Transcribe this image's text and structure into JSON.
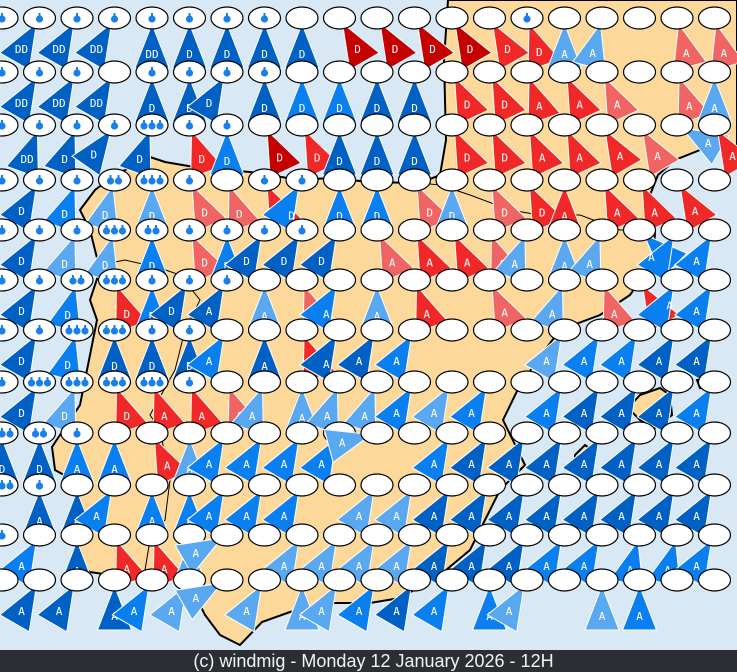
{
  "footer": {
    "text": "(c) windmig - Monday 12 January 2026 - 12H"
  },
  "colors": {
    "sea": "#d8e8f4",
    "land": "#fcd99a",
    "coast": "#000000",
    "footer_bg": "#2b2f33",
    "drop": "#1a7fe8"
  },
  "palette": {
    "dk": "#0060c4",
    "md": "#0a80f0",
    "lt": "#5aa8f0",
    "pk": "#f06464",
    "rd": "#f02828",
    "dr": "#c40000"
  },
  "legend_note": "",
  "marker_fields": [
    "label",
    "color",
    "drops",
    "direction_deg"
  ],
  "marker_rows": [
    [
      [
        "D",
        "dk",
        1,
        40
      ],
      [
        "DD",
        "dk",
        1,
        30
      ],
      [
        "DD",
        "dk",
        1,
        30
      ],
      [
        "DD",
        "dk",
        1,
        30
      ],
      [
        "DD",
        "dk",
        1,
        0
      ],
      [
        "D",
        "dk",
        1,
        0
      ],
      [
        "D",
        "dk",
        1,
        0
      ],
      [
        "D",
        "dk",
        1,
        0
      ],
      [
        "D",
        "dk",
        0,
        0
      ],
      [
        "D",
        "dr",
        0,
        -30
      ],
      [
        "D",
        "dr",
        0,
        -30
      ],
      [
        "D",
        "dr",
        0,
        -30
      ],
      [
        "D",
        "dr",
        0,
        -30
      ],
      [
        "D",
        "rd",
        0,
        -30
      ],
      [
        "D",
        "rd",
        1,
        -20
      ],
      [
        "A",
        "lt",
        0,
        0
      ],
      [
        "A",
        "lt",
        0,
        15
      ],
      [
        "",
        "",
        0,
        0
      ],
      [
        "A",
        "pk",
        0,
        -15
      ],
      [
        "A",
        "pk",
        0,
        -15
      ]
    ],
    [
      [
        "D",
        "dk",
        1,
        35
      ],
      [
        "DD",
        "dk",
        1,
        30
      ],
      [
        "DD",
        "dk",
        1,
        30
      ],
      [
        "DD",
        "dk",
        0,
        30
      ],
      [
        "D",
        "dk",
        1,
        0
      ],
      [
        "D",
        "dk",
        1,
        0
      ],
      [
        "D",
        "dk",
        1,
        30
      ],
      [
        "D",
        "dk",
        1,
        0
      ],
      [
        "D",
        "md",
        0,
        0
      ],
      [
        "D",
        "md",
        0,
        0
      ],
      [
        "D",
        "dk",
        0,
        0
      ],
      [
        "D",
        "dk",
        0,
        0
      ],
      [
        "D",
        "rd",
        0,
        -25
      ],
      [
        "D",
        "rd",
        0,
        -25
      ],
      [
        "A",
        "rd",
        0,
        -20
      ],
      [
        "A",
        "rd",
        0,
        -25
      ],
      [
        "A",
        "pk",
        0,
        -25
      ],
      [
        "",
        "",
        0,
        0
      ],
      [
        "A",
        "pk",
        0,
        -20
      ],
      [
        "A",
        "lt",
        0,
        0
      ]
    ],
    [
      [
        "D",
        "dk",
        1,
        30
      ],
      [
        "DD",
        "dk",
        1,
        20
      ],
      [
        "D",
        "dk",
        1,
        20
      ],
      [
        "D",
        "dk",
        1,
        35
      ],
      [
        "D",
        "dk",
        3,
        20
      ],
      [
        "D",
        "rd",
        1,
        -20
      ],
      [
        "D",
        "md",
        1,
        0
      ],
      [
        "D",
        "dr",
        0,
        -25
      ],
      [
        "D",
        "rd",
        0,
        -25
      ],
      [
        "D",
        "dk",
        0,
        0
      ],
      [
        "D",
        "dk",
        0,
        0
      ],
      [
        "D",
        "dk",
        0,
        0
      ],
      [
        "D",
        "rd",
        0,
        -25
      ],
      [
        "D",
        "rd",
        0,
        -25
      ],
      [
        "A",
        "rd",
        0,
        -25
      ],
      [
        "A",
        "rd",
        0,
        -25
      ],
      [
        "A",
        "rd",
        0,
        -30
      ],
      [
        "A",
        "pk",
        0,
        -30
      ],
      [
        "A",
        "lt",
        0,
        -60
      ],
      [
        "A",
        "rd",
        0,
        -30
      ]
    ],
    [
      [
        "D",
        "dk",
        1,
        35
      ],
      [
        "D",
        "dk",
        1,
        30
      ],
      [
        "D",
        "md",
        1,
        20
      ],
      [
        "D",
        "lt",
        2,
        15
      ],
      [
        "D",
        "lt",
        3,
        0
      ],
      [
        "D",
        "pk",
        1,
        -25
      ],
      [
        "D",
        "pk",
        0,
        -20
      ],
      [
        "D",
        "rd",
        1,
        -25
      ],
      [
        "D",
        "md",
        1,
        30
      ],
      [
        "D",
        "md",
        0,
        0
      ],
      [
        "D",
        "md",
        0,
        0
      ],
      [
        "D",
        "pk",
        0,
        -25
      ],
      [
        "D",
        "lt",
        0,
        0
      ],
      [
        "D",
        "pk",
        0,
        -25
      ],
      [
        "D",
        "rd",
        0,
        -25
      ],
      [
        "A",
        "rd",
        0,
        0
      ],
      [
        "A",
        "rd",
        0,
        -25
      ],
      [
        "A",
        "rd",
        0,
        -25
      ],
      [
        "A",
        "rd",
        0,
        -30
      ],
      [
        "",
        "",
        0,
        0
      ]
    ],
    [
      [
        "D",
        "dk",
        1,
        30
      ],
      [
        "D",
        "dk",
        1,
        30
      ],
      [
        "D",
        "lt",
        1,
        20
      ],
      [
        "D",
        "lt",
        3,
        15
      ],
      [
        "D",
        "md",
        2,
        0
      ],
      [
        "D",
        "pk",
        1,
        -25
      ],
      [
        "D",
        "md",
        1,
        0
      ],
      [
        "D",
        "dk",
        1,
        30
      ],
      [
        "D",
        "dk",
        1,
        30
      ],
      [
        "D",
        "dk",
        0,
        30
      ],
      [
        "A",
        "pk",
        0,
        -25
      ],
      [
        "A",
        "rd",
        0,
        -25
      ],
      [
        "A",
        "rd",
        0,
        -25
      ],
      [
        "A",
        "pk",
        0,
        -20
      ],
      [
        "A",
        "lt",
        0,
        20
      ],
      [
        "A",
        "lt",
        0,
        0
      ],
      [
        "A",
        "lt",
        0,
        20
      ],
      [
        "A",
        "md",
        0,
        -45
      ],
      [
        "A",
        "md",
        0,
        30
      ],
      [
        "A",
        "md",
        0,
        30
      ]
    ],
    [
      [
        "D",
        "dk",
        1,
        30
      ],
      [
        "D",
        "dk",
        1,
        30
      ],
      [
        "D",
        "md",
        2,
        15
      ],
      [
        "D",
        "rd",
        3,
        -20
      ],
      [
        "D",
        "md",
        1,
        0
      ],
      [
        "D",
        "dk",
        1,
        30
      ],
      [
        "A",
        "dk",
        1,
        30
      ],
      [
        "A",
        "lt",
        0,
        0
      ],
      [
        "A",
        "pk",
        0,
        -20
      ],
      [
        "A",
        "md",
        0,
        30
      ],
      [
        "A",
        "lt",
        0,
        0
      ],
      [
        "A",
        "rd",
        0,
        -20
      ],
      [
        "",
        "",
        0,
        0
      ],
      [
        "A",
        "pk",
        0,
        -25
      ],
      [
        "",
        "",
        0,
        0
      ],
      [
        "A",
        "lt",
        0,
        20
      ],
      [
        "A",
        "pk",
        0,
        -20
      ],
      [
        "A",
        "rd",
        0,
        -30
      ],
      [
        "A",
        "md",
        0,
        30
      ],
      [
        "A",
        "md",
        0,
        30
      ]
    ],
    [
      [
        "D",
        "dk",
        1,
        30
      ],
      [
        "D",
        "dk",
        1,
        30
      ],
      [
        "D",
        "md",
        3,
        15
      ],
      [
        "D",
        "dk",
        3,
        0
      ],
      [
        "D",
        "dk",
        1,
        0
      ],
      [
        "D",
        "dk",
        1,
        0
      ],
      [
        "A",
        "md",
        0,
        30
      ],
      [
        "A",
        "dk",
        0,
        0
      ],
      [
        "A",
        "rd",
        0,
        -20
      ],
      [
        "A",
        "dk",
        0,
        30
      ],
      [
        "A",
        "dk",
        0,
        30
      ],
      [
        "A",
        "md",
        0,
        30
      ],
      [
        "",
        "",
        0,
        0
      ],
      [
        "",
        "",
        0,
        0
      ],
      [
        "",
        "",
        0,
        0
      ],
      [
        "A",
        "lt",
        0,
        30
      ],
      [
        "A",
        "md",
        0,
        30
      ],
      [
        "A",
        "md",
        0,
        30
      ],
      [
        "A",
        "dk",
        0,
        30
      ],
      [
        "A",
        "dk",
        0,
        30
      ]
    ],
    [
      [
        "D",
        "dk",
        1,
        60
      ],
      [
        "D",
        "dk",
        3,
        30
      ],
      [
        "D",
        "lt",
        3,
        20
      ],
      [
        "D",
        "rd",
        3,
        -20
      ],
      [
        "A",
        "rd",
        3,
        -20
      ],
      [
        "A",
        "rd",
        1,
        -20
      ],
      [
        "A",
        "pk",
        0,
        -20
      ],
      [
        "A",
        "lt",
        0,
        20
      ],
      [
        "A",
        "lt",
        0,
        0
      ],
      [
        "A",
        "lt",
        0,
        20
      ],
      [
        "A",
        "lt",
        0,
        20
      ],
      [
        "A",
        "md",
        0,
        30
      ],
      [
        "A",
        "lt",
        0,
        30
      ],
      [
        "A",
        "md",
        0,
        30
      ],
      [
        "",
        "",
        0,
        0
      ],
      [
        "A",
        "md",
        0,
        30
      ],
      [
        "A",
        "dk",
        0,
        30
      ],
      [
        "A",
        "dk",
        0,
        30
      ],
      [
        "A",
        "dk",
        0,
        30
      ],
      [
        "A",
        "md",
        0,
        30
      ]
    ],
    [
      [
        "D",
        "dk",
        3,
        0
      ],
      [
        "D",
        "dk",
        2,
        0
      ],
      [
        "A",
        "md",
        1,
        0
      ],
      [
        "A",
        "md",
        0,
        0
      ],
      [
        "A",
        "rd",
        0,
        -25
      ],
      [
        "A",
        "lt",
        0,
        0
      ],
      [
        "A",
        "md",
        0,
        30
      ],
      [
        "A",
        "md",
        0,
        30
      ],
      [
        "A",
        "md",
        0,
        30
      ],
      [
        "A",
        "md",
        0,
        30
      ],
      [
        "A",
        "lt",
        0,
        75
      ],
      [
        "",
        "",
        0,
        0
      ],
      [
        "A",
        "md",
        0,
        30
      ],
      [
        "A",
        "dk",
        0,
        30
      ],
      [
        "A",
        "dk",
        0,
        30
      ],
      [
        "A",
        "dk",
        0,
        30
      ],
      [
        "A",
        "dk",
        0,
        30
      ],
      [
        "A",
        "dk",
        0,
        30
      ],
      [
        "A",
        "dk",
        0,
        30
      ],
      [
        "A",
        "dk",
        0,
        30
      ]
    ],
    [
      [
        "D",
        "dk",
        3,
        30
      ],
      [
        "A",
        "dk",
        1,
        0
      ],
      [
        "A",
        "dk",
        0,
        0
      ],
      [
        "A",
        "md",
        0,
        30
      ],
      [
        "A",
        "md",
        0,
        0
      ],
      [
        "A",
        "md",
        0,
        0
      ],
      [
        "A",
        "md",
        0,
        30
      ],
      [
        "A",
        "md",
        0,
        30
      ],
      [
        "A",
        "md",
        0,
        30
      ],
      [
        "",
        "",
        0,
        0
      ],
      [
        "A",
        "lt",
        0,
        30
      ],
      [
        "A",
        "lt",
        0,
        30
      ],
      [
        "A",
        "dk",
        0,
        30
      ],
      [
        "A",
        "dk",
        0,
        30
      ],
      [
        "A",
        "dk",
        0,
        30
      ],
      [
        "A",
        "dk",
        0,
        30
      ],
      [
        "A",
        "dk",
        0,
        30
      ],
      [
        "A",
        "dk",
        0,
        30
      ],
      [
        "A",
        "dk",
        0,
        30
      ],
      [
        "A",
        "dk",
        0,
        30
      ]
    ],
    [
      [
        "A",
        "dk",
        1,
        30
      ],
      [
        "A",
        "md",
        0,
        30
      ],
      [
        "A",
        "dk",
        0,
        0
      ],
      [
        "A",
        "rd",
        0,
        -20
      ],
      [
        "A",
        "rd",
        0,
        -20
      ],
      [
        "A",
        "lt",
        0,
        0
      ],
      [
        "A",
        "lt",
        0,
        60
      ],
      [
        "",
        "",
        0,
        0
      ],
      [
        "A",
        "lt",
        0,
        30
      ],
      [
        "A",
        "lt",
        0,
        30
      ],
      [
        "A",
        "lt",
        0,
        30
      ],
      [
        "A",
        "lt",
        0,
        30
      ],
      [
        "A",
        "dk",
        0,
        30
      ],
      [
        "A",
        "dk",
        0,
        30
      ],
      [
        "A",
        "dk",
        0,
        30
      ],
      [
        "A",
        "md",
        0,
        30
      ],
      [
        "A",
        "md",
        0,
        30
      ],
      [
        "A",
        "md",
        0,
        15
      ],
      [
        "A",
        "md",
        0,
        15
      ],
      [
        "A",
        "md",
        0,
        30
      ]
    ],
    [
      [
        "A",
        "md",
        0,
        30
      ],
      [
        "A",
        "dk",
        0,
        30
      ],
      [
        "A",
        "dk",
        0,
        30
      ],
      [
        "A",
        "dk",
        0,
        0
      ],
      [
        "A",
        "md",
        0,
        30
      ],
      [
        "A",
        "lt",
        0,
        30
      ],
      [
        "A",
        "lt",
        0,
        60
      ],
      [
        "A",
        "lt",
        0,
        30
      ],
      [
        "A",
        "lt",
        0,
        0
      ],
      [
        "A",
        "lt",
        0,
        30
      ],
      [
        "A",
        "md",
        0,
        30
      ],
      [
        "A",
        "dk",
        0,
        30
      ],
      [
        "A",
        "md",
        0,
        30
      ],
      [
        "A",
        "md",
        0,
        0
      ],
      [
        "A",
        "lt",
        0,
        30
      ],
      [
        "",
        "",
        0,
        0
      ],
      [
        "A",
        "lt",
        0,
        0
      ],
      [
        "A",
        "md",
        0,
        0
      ],
      [
        "",
        "",
        0,
        0
      ],
      [
        "",
        "",
        0,
        0
      ]
    ]
  ]
}
